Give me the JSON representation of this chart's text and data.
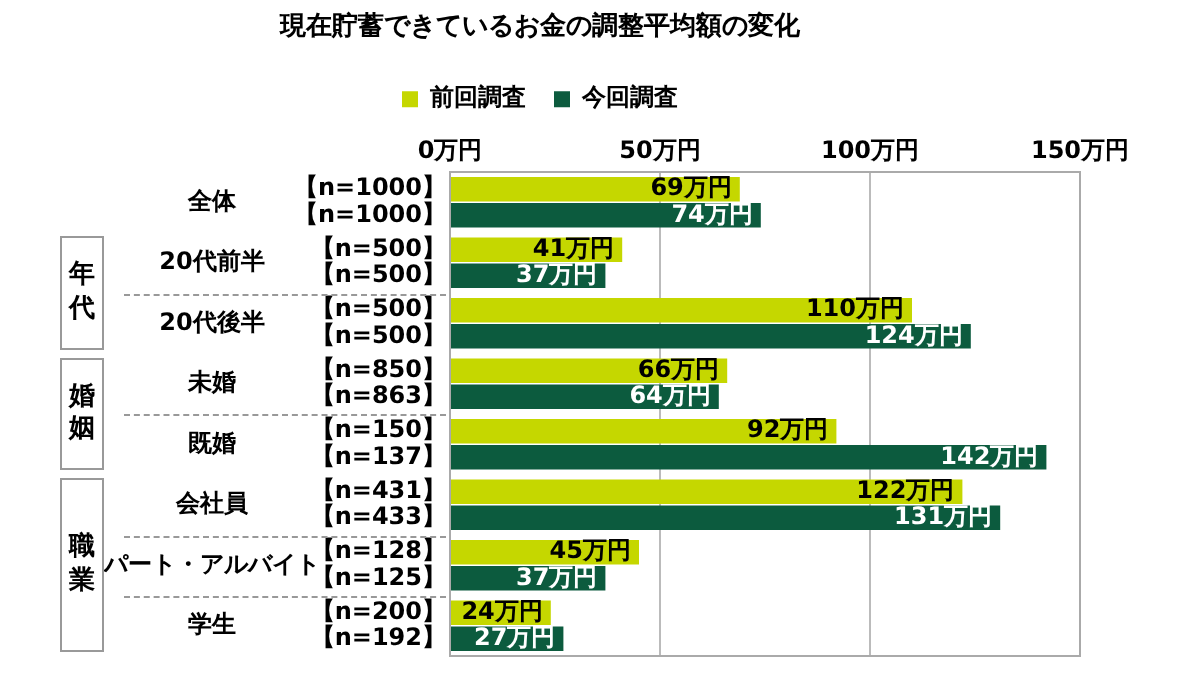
{
  "chart_data": {
    "type": "bar",
    "orientation": "horizontal",
    "title": "現在貯蓄できているお金の調整平均額の変化",
    "categories": [
      "全体",
      "20代前半",
      "20代後半",
      "未婚",
      "既婚",
      "会社員",
      "パート・アルバイト",
      "学生"
    ],
    "series": [
      {
        "name": "前回調査",
        "color": "#c5d700",
        "values": [
          69,
          41,
          110,
          66,
          92,
          122,
          45,
          24
        ],
        "value_labels": [
          "69万円",
          "41万円",
          "110万円",
          "66万円",
          "92万円",
          "122万円",
          "45万円",
          "24万円"
        ]
      },
      {
        "name": "今回調査",
        "color": "#0c5b3e",
        "values": [
          74,
          37,
          124,
          64,
          142,
          131,
          37,
          27
        ],
        "value_labels": [
          "74万円",
          "37万円",
          "124万円",
          "64万円",
          "142万円",
          "131万円",
          "37万円",
          "27万円"
        ]
      }
    ],
    "xlim": [
      0,
      150
    ],
    "xticks": [
      {
        "value": 0,
        "label": "0万円"
      },
      {
        "value": 50,
        "label": "50万円"
      },
      {
        "value": 100,
        "label": "100万円"
      },
      {
        "value": 150,
        "label": "150万円"
      }
    ],
    "grid": "x",
    "legend": "top",
    "annotations": [
      "【n=1000】",
      "【n=1000】",
      "【n=500】",
      "【n=500】",
      "【n=500】",
      "【n=500】",
      "【n=850】",
      "【n=863】",
      "【n=150】",
      "【n=137】",
      "【n=431】",
      "【n=433】",
      "【n=128】",
      "【n=125】",
      "【n=200】",
      "【n=192】",
      "年代",
      "婚姻",
      "職業"
    ]
  }
}
